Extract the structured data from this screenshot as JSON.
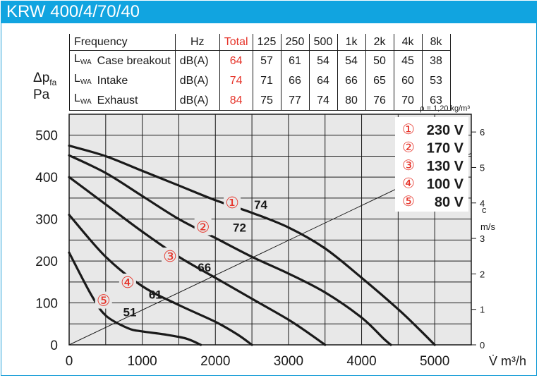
{
  "header": {
    "title": "KRW 400/4/70/40"
  },
  "table": {
    "headers": [
      "Frequency",
      "Hz",
      "Total",
      "125",
      "250",
      "500",
      "1k",
      "2k",
      "4k",
      "8k"
    ],
    "rows": [
      {
        "symbol": "L",
        "symbol_sub": "WA",
        "label": "Case breakout",
        "unit": "dB(A)",
        "total": "64",
        "values": [
          "57",
          "61",
          "54",
          "54",
          "50",
          "45",
          "38"
        ]
      },
      {
        "symbol": "L",
        "symbol_sub": "WA",
        "label": "Intake",
        "unit": "dB(A)",
        "total": "74",
        "values": [
          "71",
          "66",
          "64",
          "66",
          "65",
          "60",
          "53"
        ]
      },
      {
        "symbol": "L",
        "symbol_sub": "WA",
        "label": "Exhaust",
        "unit": "dB(A)",
        "total": "84",
        "values": [
          "75",
          "77",
          "74",
          "80",
          "76",
          "70",
          "63"
        ]
      }
    ]
  },
  "colors": {
    "title_bar": "#11a4e0",
    "marker_red": "#e63329",
    "chart_bg": "#e8e8e8"
  },
  "chart_data": {
    "type": "line",
    "ylabel_main": "Δp",
    "ylabel_sub": "fa",
    "ylabel_unit": "Pa",
    "xlabel": "V̇ m³/h",
    "density_note": "ρ = 1,20 kg/m³",
    "xlim": [
      0,
      5500
    ],
    "ylim": [
      0,
      550
    ],
    "x_ticks": [
      0,
      1000,
      2000,
      3000,
      4000,
      5000
    ],
    "y_ticks": [
      0,
      100,
      200,
      300,
      400,
      500
    ],
    "right_axis": {
      "label": "c",
      "unit": "m/s",
      "ticks": [
        0,
        1,
        2,
        3,
        4,
        5,
        6
      ],
      "max": 6.5
    },
    "grid": true,
    "legend": [
      {
        "marker": "①",
        "label": "230 V"
      },
      {
        "marker": "②",
        "label": "170 V"
      },
      {
        "marker": "③",
        "label": "130 V"
      },
      {
        "marker": "④",
        "label": "100 V"
      },
      {
        "marker": "⑤",
        "label": "80 V"
      }
    ],
    "series": [
      {
        "marker": "①",
        "sound_label": "74",
        "x": [
          0,
          500,
          1000,
          1500,
          2000,
          2500,
          3000,
          3500,
          4000,
          4500,
          4800,
          5000
        ],
        "y": [
          475,
          450,
          415,
          380,
          345,
          315,
          280,
          230,
          160,
          85,
          35,
          0
        ]
      },
      {
        "marker": "②",
        "sound_label": "72",
        "x": [
          0,
          500,
          1000,
          1500,
          2000,
          2500,
          3000,
          3500,
          4000,
          4300,
          4400
        ],
        "y": [
          452,
          410,
          355,
          300,
          255,
          210,
          170,
          125,
          65,
          15,
          0
        ]
      },
      {
        "marker": "③",
        "sound_label": "66",
        "x": [
          0,
          500,
          1000,
          1500,
          2000,
          2500,
          3000,
          3300,
          3500
        ],
        "y": [
          400,
          335,
          270,
          210,
          160,
          110,
          60,
          25,
          0
        ]
      },
      {
        "marker": "④",
        "sound_label": "61",
        "x": [
          0,
          500,
          1000,
          1500,
          2000,
          2300,
          2500
        ],
        "y": [
          310,
          210,
          140,
          95,
          55,
          25,
          0
        ]
      },
      {
        "marker": "⑤",
        "sound_label": "51",
        "x": [
          0,
          300,
          500,
          800,
          1000,
          1300,
          1600,
          1800
        ],
        "y": [
          220,
          120,
          70,
          40,
          32,
          25,
          15,
          0
        ]
      }
    ],
    "system_line": {
      "x": [
        0,
        5500
      ],
      "y_right": [
        0,
        5.4
      ]
    }
  }
}
